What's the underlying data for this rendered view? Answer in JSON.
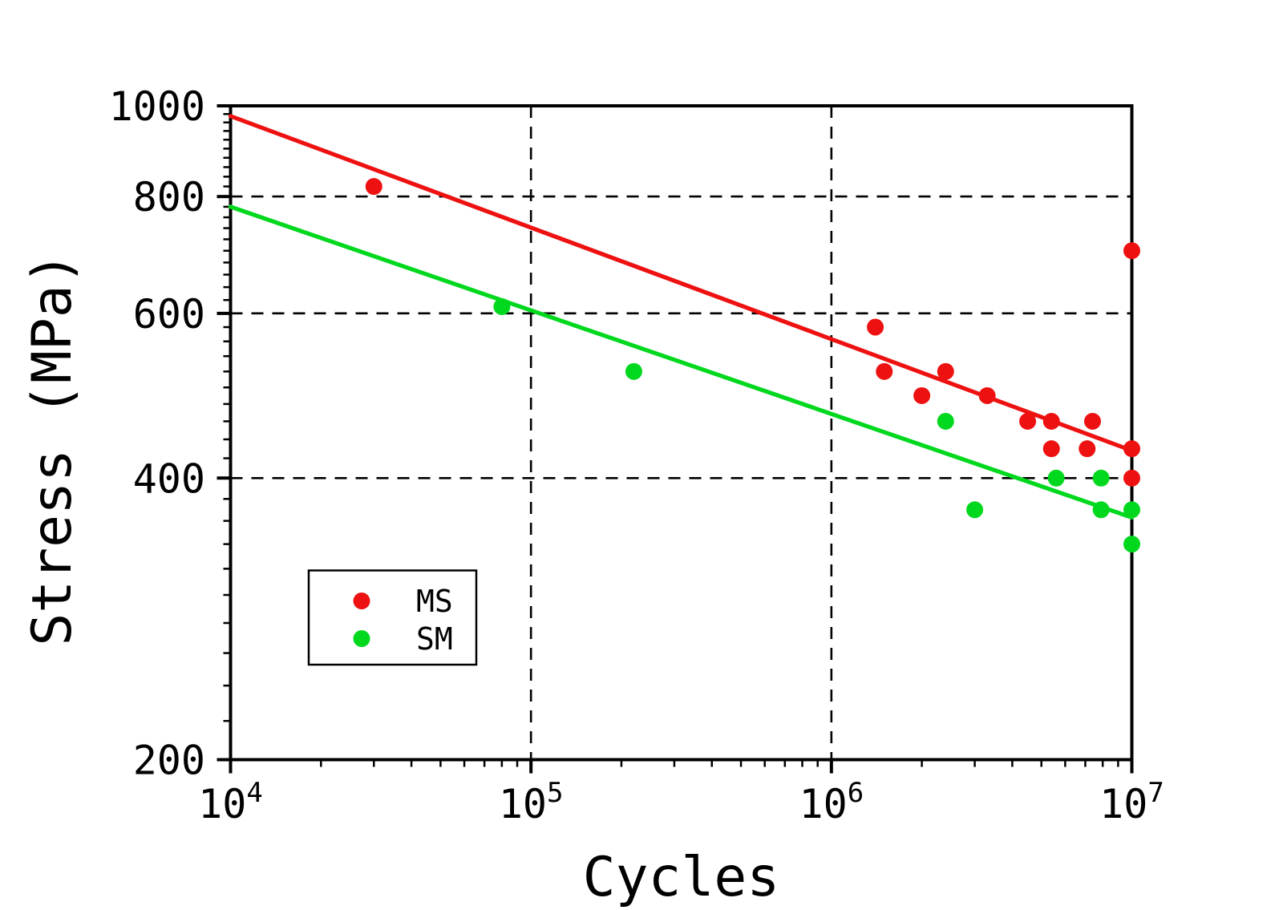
{
  "chart_data": {
    "type": "scatter",
    "title": "",
    "xlabel": "Cycles",
    "ylabel": "Stress (MPa)",
    "x_scale": "log",
    "y_scale": "log",
    "xlim": [
      10000,
      10000000
    ],
    "ylim": [
      200,
      1000
    ],
    "x_major_ticks": [
      10000,
      100000,
      1000000,
      10000000
    ],
    "x_tick_label_base": "10",
    "x_tick_label_exponents": [
      4,
      5,
      6,
      7
    ],
    "x_minor_tick_subs": [
      2,
      3,
      4,
      5,
      6,
      7,
      8,
      9
    ],
    "y_major_ticks": [
      1000,
      800,
      600,
      400,
      200
    ],
    "y_minor_tick_step": 20,
    "grid": {
      "style": "dashed",
      "vertical_dashed_at": [
        100000,
        1000000
      ],
      "horizontal_dashed_at": [
        800,
        600,
        400
      ]
    },
    "axis_color": "#000000",
    "background_color": "#ffffff",
    "series": [
      {
        "name": "MS",
        "color": "#ee1111",
        "marker": "circle",
        "points": [
          [
            30000,
            820
          ],
          [
            1400000,
            580
          ],
          [
            1500000,
            520
          ],
          [
            2000000,
            490
          ],
          [
            2400000,
            520
          ],
          [
            3300000,
            490
          ],
          [
            4500000,
            460
          ],
          [
            5400000,
            460
          ],
          [
            5400000,
            430
          ],
          [
            7100000,
            430
          ],
          [
            7400000,
            460
          ],
          [
            10000000,
            700
          ],
          [
            10000000,
            430
          ],
          [
            10000000,
            400
          ]
        ],
        "fit_line": {
          "x": [
            10000,
            10000000
          ],
          "y": [
            975,
            428
          ]
        }
      },
      {
        "name": "SM",
        "color": "#00d81e",
        "marker": "circle",
        "points": [
          [
            80000,
            610
          ],
          [
            220000,
            520
          ],
          [
            2400000,
            460
          ],
          [
            3000000,
            370
          ],
          [
            5600000,
            400
          ],
          [
            7900000,
            400
          ],
          [
            7900000,
            370
          ],
          [
            10000000,
            370
          ],
          [
            10000000,
            340
          ]
        ],
        "fit_line": {
          "x": [
            10000,
            10000000
          ],
          "y": [
            780,
            363
          ]
        }
      }
    ],
    "legend": {
      "position": "lower-left",
      "items": [
        {
          "label": "MS",
          "color": "#ee1111"
        },
        {
          "label": "SM",
          "color": "#00d81e"
        }
      ]
    }
  }
}
